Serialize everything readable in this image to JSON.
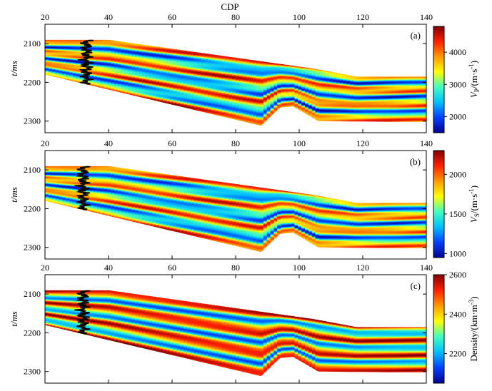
{
  "figure": {
    "top_axis_title": "CDP",
    "x_tick_labels": [
      "20",
      "40",
      "60",
      "80",
      "100",
      "120",
      "140"
    ],
    "y_tick_labels": [
      "2100",
      "2200",
      "2300"
    ],
    "y_axis_label": "t/ms"
  },
  "colormap": [
    "#00008f",
    "#0040ff",
    "#00c0ff",
    "#40ffbf",
    "#ffff00",
    "#ff9900",
    "#ff2000",
    "#800000"
  ],
  "well_line_color": "#000000",
  "chart_data": [
    {
      "type": "heatmap",
      "panel_label": "(a)",
      "title": "",
      "xlabel": "CDP",
      "ylabel": "t/ms",
      "xlim": [
        20,
        140
      ],
      "ylim": [
        2330,
        2050
      ],
      "x_ticks": [
        20,
        40,
        60,
        80,
        100,
        120,
        140
      ],
      "y_ticks": [
        2100,
        2200,
        2300
      ],
      "colorbar_label": "VP/(m·s-1)",
      "colorbar_range": [
        1500,
        4800
      ],
      "colorbar_ticks": [
        2000,
        3000,
        4000
      ],
      "colorbar_tick_labels": [
        "2000",
        "3000",
        "4000"
      ],
      "well_log_cdp": 33
    },
    {
      "type": "heatmap",
      "panel_label": "(b)",
      "title": "",
      "xlabel": "CDP",
      "ylabel": "t/ms",
      "xlim": [
        20,
        140
      ],
      "ylim": [
        2330,
        2050
      ],
      "x_ticks": [
        20,
        40,
        60,
        80,
        100,
        120,
        140
      ],
      "y_ticks": [
        2100,
        2200,
        2300
      ],
      "colorbar_label": "VS/(m·s-1)",
      "colorbar_range": [
        950,
        2300
      ],
      "colorbar_ticks": [
        1000,
        1500,
        2000
      ],
      "colorbar_tick_labels": [
        "1000",
        "1500",
        "2000"
      ],
      "well_log_cdp": 32
    },
    {
      "type": "heatmap",
      "panel_label": "(c)",
      "title": "",
      "xlabel": "CDP",
      "ylabel": "t/ms",
      "xlim": [
        20,
        140
      ],
      "ylim": [
        2330,
        2050
      ],
      "x_ticks": [
        20,
        40,
        60,
        80,
        100,
        120,
        140
      ],
      "y_ticks": [
        2100,
        2200,
        2300
      ],
      "colorbar_label": "Density/(km·m-3)",
      "colorbar_range": [
        2050,
        2600
      ],
      "colorbar_ticks": [
        2200,
        2400,
        2600
      ],
      "colorbar_tick_labels": [
        "2200",
        "2400",
        "2600"
      ],
      "well_log_cdp": 32
    }
  ]
}
